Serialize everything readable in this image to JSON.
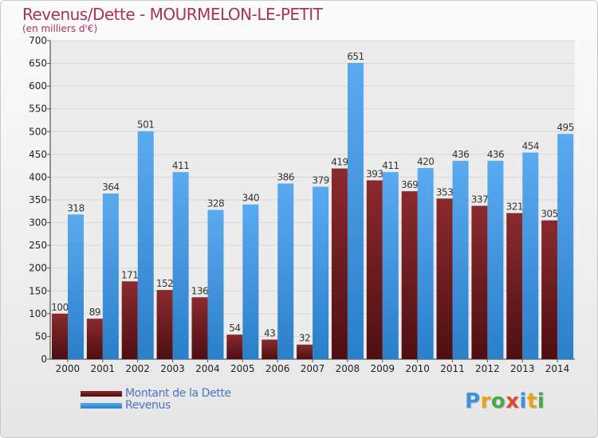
{
  "colors": {
    "title": "#a8325e",
    "debt": "#7a1e22",
    "revenue": "#3d93db",
    "legend_text": "#4a73c9"
  },
  "logo": {
    "text": "Proxiti",
    "letters": [
      {
        "ch": "P",
        "color": "#3d93db"
      },
      {
        "ch": "r",
        "color": "#e8a317"
      },
      {
        "ch": "o",
        "color": "#4aa84a"
      },
      {
        "ch": "x",
        "color": "#e04a2a"
      },
      {
        "ch": "i",
        "color": "#3d93db"
      },
      {
        "ch": "t",
        "color": "#e8a317"
      },
      {
        "ch": "i",
        "color": "#4aa84a"
      }
    ]
  },
  "chart_data": {
    "type": "bar",
    "title": "Revenus/Dette - MOURMELON-LE-PETIT",
    "subtitle": "(en milliers d'€)",
    "categories": [
      "2000",
      "2001",
      "2002",
      "2003",
      "2004",
      "2005",
      "2006",
      "2007",
      "2008",
      "2009",
      "2010",
      "2011",
      "2012",
      "2013",
      "2014"
    ],
    "series": [
      {
        "name": "Montant de la Dette",
        "color": "#7a1e22",
        "values": [
          100,
          89,
          171,
          152,
          136,
          54,
          43,
          32,
          419,
          393,
          369,
          353,
          337,
          321,
          305
        ]
      },
      {
        "name": "Revenus",
        "color": "#3d93db",
        "values": [
          318,
          364,
          501,
          411,
          328,
          340,
          386,
          379,
          651,
          411,
          420,
          436,
          436,
          454,
          495
        ]
      }
    ],
    "ylim": [
      0,
      700
    ],
    "yticks": [
      0,
      50,
      100,
      150,
      200,
      250,
      300,
      350,
      400,
      450,
      500,
      550,
      600,
      650,
      700
    ],
    "grid": true,
    "legend_position": "bottom-left"
  }
}
